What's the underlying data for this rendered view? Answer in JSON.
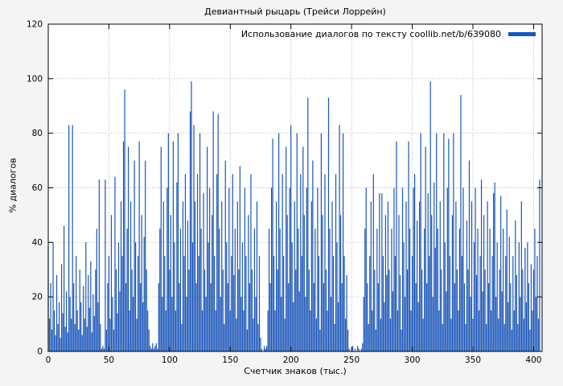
{
  "page": {
    "background": "#f4f4f4",
    "plot_background": "#ffffff"
  },
  "chart_data": {
    "type": "bar",
    "title": "Девиантный рыцарь (Трейси Лоррейн)",
    "legend": "Использование диалогов по тексту coollib.net/b/639080",
    "xlabel": "Счетчик знаков (тыс.)",
    "ylabel": "% диалогов",
    "xlim": [
      0,
      407
    ],
    "ylim": [
      0,
      120
    ],
    "x_ticks": [
      0,
      50,
      100,
      150,
      200,
      250,
      300,
      350,
      400
    ],
    "y_ticks": [
      0,
      20,
      40,
      60,
      80,
      100,
      120
    ],
    "grid": true,
    "legend_position": "top-right",
    "bar_color": "#1a55b8",
    "x_step": 1,
    "values": [
      38,
      12,
      25,
      8,
      40,
      15,
      6,
      28,
      10,
      18,
      5,
      32,
      14,
      46,
      9,
      22,
      7,
      83,
      20,
      12,
      83,
      25,
      10,
      35,
      15,
      8,
      30,
      18,
      6,
      24,
      12,
      40,
      9,
      28,
      16,
      33,
      7,
      21,
      13,
      30,
      45,
      18,
      63,
      10,
      1,
      2,
      1,
      63,
      8,
      25,
      35,
      12,
      50,
      20,
      8,
      64,
      30,
      14,
      40,
      22,
      55,
      35,
      77,
      96,
      25,
      45,
      75,
      15,
      55,
      30,
      20,
      70,
      40,
      12,
      35,
      77,
      25,
      50,
      18,
      42,
      70,
      30,
      15,
      8,
      2,
      1,
      3,
      1,
      2,
      3,
      1,
      25,
      45,
      75,
      20,
      55,
      35,
      15,
      60,
      80,
      30,
      50,
      20,
      77,
      40,
      15,
      62,
      80,
      25,
      45,
      10,
      55,
      35,
      65,
      20,
      48,
      30,
      88,
      99,
      40,
      83,
      55,
      25,
      65,
      35,
      80,
      45,
      15,
      58,
      30,
      20,
      75,
      40,
      60,
      25,
      50,
      88,
      35,
      15,
      65,
      87,
      45,
      20,
      55,
      30,
      10,
      70,
      40,
      25,
      60,
      15,
      35,
      65,
      28,
      45,
      12,
      55,
      30,
      68,
      20,
      40,
      15,
      60,
      35,
      8,
      50,
      25,
      65,
      30,
      12,
      45,
      20,
      55,
      10,
      35,
      5,
      1,
      0,
      2,
      1,
      2,
      15,
      45,
      25,
      60,
      78,
      35,
      15,
      55,
      30,
      80,
      45,
      20,
      65,
      35,
      12,
      75,
      50,
      25,
      60,
      83,
      40,
      18,
      55,
      30,
      80,
      45,
      22,
      65,
      35,
      75,
      50,
      20,
      60,
      93,
      30,
      15,
      55,
      70,
      25,
      45,
      12,
      60,
      35,
      8,
      80,
      50,
      25,
      65,
      30,
      15,
      93,
      45,
      20,
      55,
      35,
      10,
      65,
      40,
      18,
      83,
      50,
      25,
      80,
      35,
      12,
      28,
      8,
      1,
      0,
      1,
      2,
      0,
      1,
      0,
      2,
      1,
      0,
      1,
      3,
      20,
      45,
      60,
      25,
      10,
      35,
      55,
      15,
      65,
      30,
      8,
      45,
      25,
      58,
      12,
      58,
      35,
      18,
      50,
      28,
      55,
      30,
      12,
      45,
      22,
      60,
      35,
      77,
      15,
      50,
      28,
      8,
      60,
      40,
      20,
      55,
      30,
      77,
      45,
      15,
      35,
      60,
      65,
      25,
      48,
      18,
      55,
      80,
      30,
      12,
      45,
      75,
      25,
      58,
      35,
      99,
      50,
      20,
      62,
      38,
      80,
      45,
      15,
      55,
      30,
      10,
      80,
      40,
      22,
      60,
      78,
      35,
      12,
      50,
      80,
      25,
      55,
      30,
      15,
      45,
      94,
      35,
      60,
      25,
      10,
      48,
      30,
      70,
      20,
      55,
      12,
      40,
      60,
      28,
      45,
      15,
      35,
      63,
      22,
      50,
      30,
      10,
      55,
      25,
      45,
      15,
      35,
      58,
      62,
      20,
      40,
      12,
      30,
      57,
      22,
      45,
      10,
      35,
      52,
      18,
      42,
      25,
      8,
      35,
      15,
      48,
      28,
      10,
      40,
      20,
      55,
      30,
      12,
      38,
      18,
      40,
      25,
      8,
      32,
      15,
      30,
      45,
      20,
      35,
      12,
      63
    ]
  }
}
